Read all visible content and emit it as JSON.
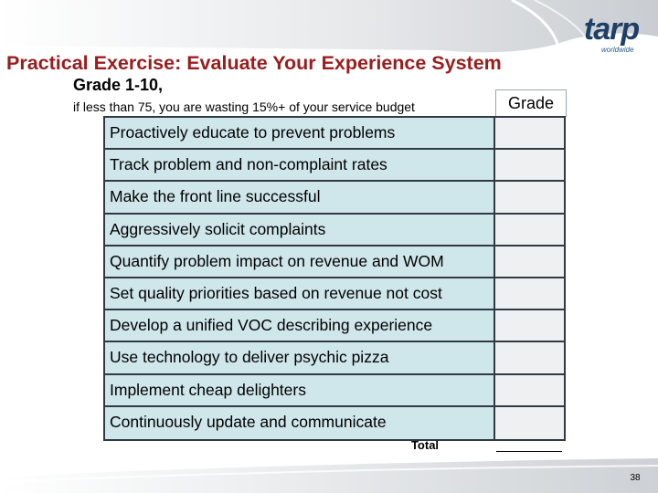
{
  "logo": {
    "word": "tarp",
    "sub": "worldwide"
  },
  "title": "Practical Exercise: Evaluate Your Experience System",
  "subtitle": "Grade 1-10,",
  "note": "if less than 75, you are wasting 15%+ of your service budget",
  "grade_header": "Grade",
  "rows": [
    {
      "label": "Proactively educate to prevent problems",
      "grade": ""
    },
    {
      "label": "Track problem and non-complaint rates",
      "grade": ""
    },
    {
      "label": "Make the front line successful",
      "grade": ""
    },
    {
      "label": "Aggressively solicit complaints",
      "grade": ""
    },
    {
      "label": "Quantify problem impact on revenue and WOM",
      "grade": ""
    },
    {
      "label": "Set quality priorities based on revenue not cost",
      "grade": ""
    },
    {
      "label": "Develop a unified VOC describing experience",
      "grade": ""
    },
    {
      "label": "Use technology to deliver psychic pizza",
      "grade": ""
    },
    {
      "label": "Implement cheap delighters",
      "grade": ""
    },
    {
      "label": "Continuously update and communicate",
      "grade": ""
    }
  ],
  "total_label": "Total",
  "page_number": "38",
  "colors": {
    "title": "#9c1c1c",
    "cell_fill": "#cfe6ea",
    "border": "#2f3a44",
    "logo": "#1f3f66"
  }
}
